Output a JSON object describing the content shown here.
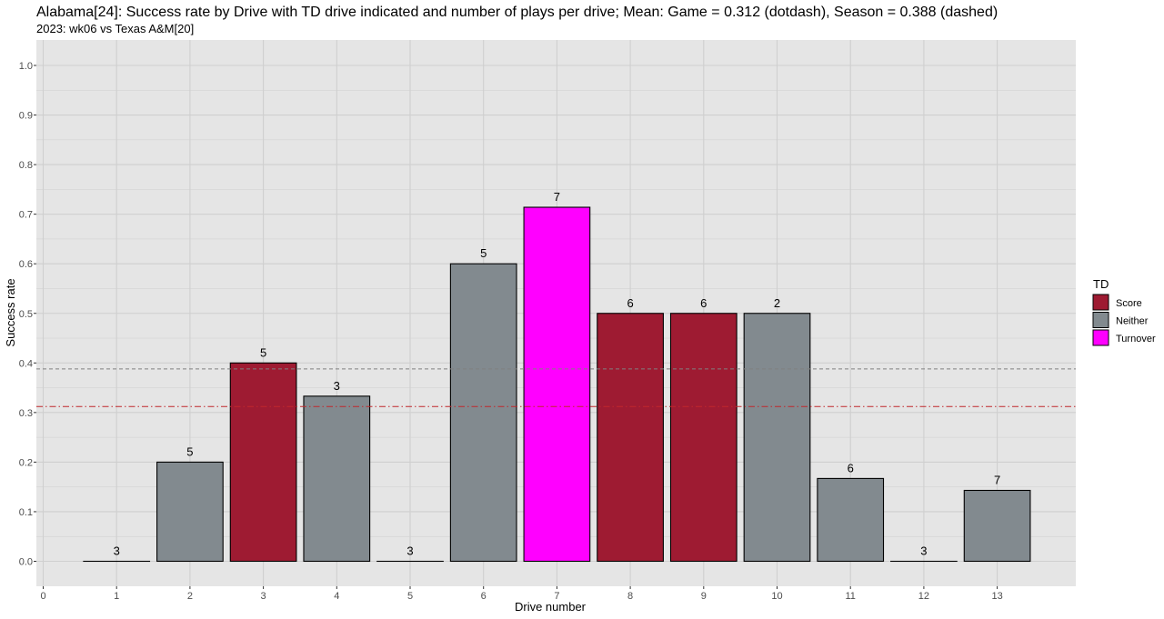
{
  "chart_data": {
    "type": "bar",
    "title": "Alabama[24]: Success rate by Drive with TD drive indicated and number of plays per drive; Mean: Game = 0.312 (dotdash), Season = 0.388 (dashed)",
    "subtitle": "2023: wk06 vs Texas A&M[20]",
    "xlabel": "Drive number",
    "ylabel": "Success rate",
    "xlim": [
      0,
      14
    ],
    "ylim": [
      0,
      1
    ],
    "x_ticks": [
      "0",
      "1",
      "2",
      "3",
      "4",
      "5",
      "6",
      "7",
      "8",
      "9",
      "10",
      "11",
      "12",
      "13"
    ],
    "y_ticks": [
      "0.0",
      "0.1",
      "0.2",
      "0.3",
      "0.4",
      "0.5",
      "0.6",
      "0.7",
      "0.8",
      "0.9",
      "1.0"
    ],
    "grid": true,
    "legend": {
      "title": "TD",
      "position": "right",
      "items": [
        {
          "label": "Score",
          "color": "#9e1b32"
        },
        {
          "label": "Neither",
          "color": "#828a8f"
        },
        {
          "label": "Turnover",
          "color": "#ff00ff"
        }
      ]
    },
    "reference_lines": [
      {
        "label": "Game",
        "value": 0.312,
        "style": "dotdash",
        "color": "#c0282d"
      },
      {
        "label": "Season",
        "value": 0.388,
        "style": "dashed",
        "color": "#808080"
      }
    ],
    "drives": [
      {
        "x": 1,
        "value": 0.0,
        "plays": "3",
        "td": "Neither"
      },
      {
        "x": 2,
        "value": 0.2,
        "plays": "5",
        "td": "Neither"
      },
      {
        "x": 3,
        "value": 0.4,
        "plays": "5",
        "td": "Score"
      },
      {
        "x": 4,
        "value": 0.333,
        "plays": "3",
        "td": "Neither"
      },
      {
        "x": 5,
        "value": 0.0,
        "plays": "3",
        "td": "Neither"
      },
      {
        "x": 6,
        "value": 0.6,
        "plays": "5",
        "td": "Neither"
      },
      {
        "x": 7,
        "value": 0.714,
        "plays": "7",
        "td": "Turnover"
      },
      {
        "x": 8,
        "value": 0.5,
        "plays": "6",
        "td": "Score"
      },
      {
        "x": 9,
        "value": 0.5,
        "plays": "6",
        "td": "Score"
      },
      {
        "x": 10,
        "value": 0.5,
        "plays": "2",
        "td": "Neither"
      },
      {
        "x": 11,
        "value": 0.167,
        "plays": "6",
        "td": "Neither"
      },
      {
        "x": 12,
        "value": 0.0,
        "plays": "3",
        "td": "Neither"
      },
      {
        "x": 13,
        "value": 0.143,
        "plays": "7",
        "td": "Neither"
      }
    ],
    "panel_color": "#e5e5e5",
    "grid_color": "#cfcfcf"
  }
}
